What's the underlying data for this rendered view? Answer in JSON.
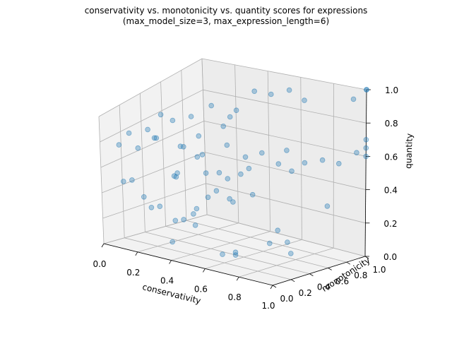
{
  "chart_data": {
    "type": "scatter3d",
    "title": "conservativity vs. monotonicity vs. quantity scores for expressions",
    "subtitle": "(max_model_size=3, max_expression_length=6)",
    "xlabel": "conservativity",
    "ylabel": "monotonicity",
    "zlabel": "quantity",
    "xlim": [
      0,
      1
    ],
    "ylim": [
      0,
      1
    ],
    "zlim": [
      0,
      1
    ],
    "x_ticks": [
      "0.0",
      "0.2",
      "0.4",
      "0.6",
      "0.8",
      "1.0"
    ],
    "y_ticks": [
      "0.0",
      "0.2",
      "0.4",
      "0.6",
      "0.8",
      "1.0"
    ],
    "z_ticks": [
      "0.0",
      "0.2",
      "0.4",
      "0.6",
      "0.8",
      "1.0"
    ],
    "grid": true,
    "point_color": "#1f77b4",
    "points": [
      [
        0.35,
        0.1,
        0.1
      ],
      [
        0.5,
        0.35,
        0.0
      ],
      [
        0.55,
        0.4,
        0.0
      ],
      [
        0.52,
        0.45,
        0.0
      ],
      [
        0.3,
        0.3,
        0.2
      ],
      [
        0.28,
        0.25,
        0.2
      ],
      [
        0.2,
        0.15,
        0.3
      ],
      [
        0.22,
        0.2,
        0.3
      ],
      [
        0.4,
        0.25,
        0.2
      ],
      [
        0.38,
        0.3,
        0.3
      ],
      [
        0.42,
        0.2,
        0.3
      ],
      [
        0.1,
        0.05,
        0.5
      ],
      [
        0.12,
        0.1,
        0.5
      ],
      [
        0.2,
        0.08,
        0.4
      ],
      [
        0.45,
        0.3,
        0.4
      ],
      [
        0.55,
        0.35,
        0.4
      ],
      [
        0.5,
        0.6,
        0.6
      ],
      [
        0.6,
        0.5,
        0.4
      ],
      [
        0.3,
        0.5,
        0.6
      ],
      [
        0.1,
        0.2,
        0.7
      ],
      [
        0.05,
        0.2,
        0.8
      ],
      [
        0.1,
        0.3,
        0.8
      ],
      [
        0.2,
        0.2,
        0.8
      ],
      [
        0.25,
        0.3,
        0.9
      ],
      [
        0.3,
        0.4,
        0.9
      ],
      [
        0.28,
        0.35,
        0.7
      ],
      [
        0.3,
        0.45,
        0.6
      ],
      [
        0.35,
        0.45,
        0.5
      ],
      [
        0.4,
        0.5,
        0.5
      ],
      [
        0.42,
        0.55,
        0.45
      ],
      [
        0.5,
        0.55,
        0.5
      ],
      [
        0.55,
        0.55,
        0.55
      ],
      [
        0.6,
        0.6,
        0.65
      ],
      [
        0.45,
        0.5,
        0.7
      ],
      [
        0.4,
        0.55,
        0.8
      ],
      [
        0.45,
        0.6,
        0.9
      ],
      [
        0.5,
        0.7,
        1.0
      ],
      [
        0.6,
        0.7,
        1.0
      ],
      [
        0.65,
        0.8,
        1.0
      ],
      [
        0.8,
        0.7,
        1.0
      ],
      [
        0.75,
        0.6,
        0.7
      ],
      [
        0.7,
        0.6,
        0.6
      ],
      [
        0.75,
        0.65,
        0.55
      ],
      [
        0.8,
        0.7,
        0.6
      ],
      [
        0.85,
        0.8,
        0.6
      ],
      [
        0.95,
        0.8,
        0.6
      ],
      [
        1.0,
        0.9,
        0.65
      ],
      [
        1.0,
        1.0,
        0.6
      ],
      [
        1.0,
        1.0,
        0.65
      ],
      [
        1.0,
        1.0,
        0.7
      ],
      [
        1.0,
        1.0,
        1.0
      ],
      [
        1.0,
        1.0,
        1.0
      ],
      [
        0.95,
        0.95,
        0.95
      ],
      [
        0.85,
        0.85,
        0.3
      ],
      [
        0.75,
        0.5,
        0.2
      ],
      [
        0.75,
        0.6,
        0.1
      ],
      [
        0.8,
        0.55,
        0.05
      ],
      [
        0.7,
        0.5,
        0.1
      ],
      [
        0.35,
        0.7,
        0.8
      ],
      [
        0.3,
        0.6,
        0.9
      ],
      [
        0.25,
        0.55,
        0.7
      ],
      [
        0.2,
        0.45,
        0.65
      ],
      [
        0.15,
        0.3,
        0.75
      ],
      [
        0.05,
        0.1,
        0.75
      ],
      [
        0.15,
        0.35,
        0.9
      ],
      [
        0.3,
        0.25,
        0.55
      ],
      [
        0.25,
        0.3,
        0.5
      ],
      [
        0.2,
        0.4,
        0.45
      ],
      [
        0.35,
        0.55,
        0.35
      ],
      [
        0.45,
        0.55,
        0.3
      ]
    ]
  }
}
